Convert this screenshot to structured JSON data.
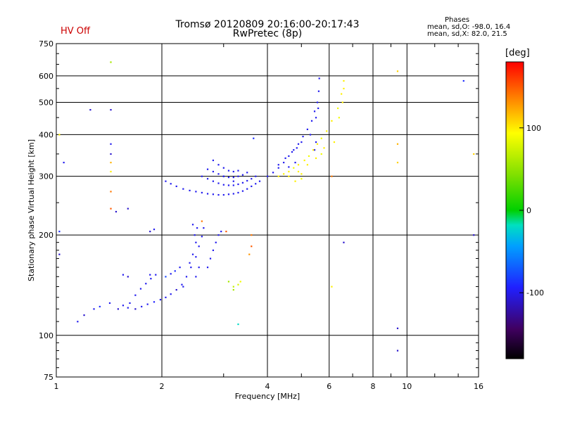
{
  "header": {
    "title_line1": "Tromsø 20120809 20:16:00-20:17:43",
    "title_line2": "RwPretec (8p)",
    "status": "HV Off",
    "stats_title": "Phases",
    "stats_line1": "mean, sd,O: -98.0, 16.4",
    "stats_line2": "mean, sd,X:  82.0, 21.5"
  },
  "colorbar": {
    "label": "[deg]",
    "ticks": [
      "100",
      "0",
      "-100"
    ],
    "tick_values": [
      100,
      0,
      -100
    ],
    "range": [
      -180,
      180
    ]
  },
  "chart_data": {
    "type": "scatter",
    "title": "Tromsø 20120809 20:16:00-20:17:43",
    "subtitle": "RwPretec (8p)",
    "xlabel": "Frequency [MHz]",
    "ylabel": "Stationary phase Virtual Height [km]",
    "xscale": "log",
    "yscale": "log",
    "xlim": [
      1,
      16
    ],
    "ylim": [
      75,
      750
    ],
    "xticks": [
      1,
      2,
      4,
      6,
      8,
      10,
      16
    ],
    "yticks": [
      75,
      100,
      200,
      300,
      400,
      500,
      600,
      750
    ],
    "grid": true,
    "color_by": "phase [deg]",
    "series": [
      {
        "values": [
          [
            1.15,
            110,
            -100
          ],
          [
            1.2,
            115,
            -110
          ],
          [
            1.28,
            120,
            -100
          ],
          [
            1.33,
            122,
            -90
          ],
          [
            1.42,
            125,
            -100
          ],
          [
            1.5,
            120,
            -110
          ],
          [
            1.55,
            123,
            -100
          ],
          [
            1.6,
            121,
            -100
          ],
          [
            1.68,
            120,
            -110
          ],
          [
            1.75,
            122,
            -100
          ],
          [
            1.82,
            124,
            -100
          ],
          [
            1.9,
            126,
            -95
          ],
          [
            1.98,
            128,
            -100
          ],
          [
            2.05,
            130,
            -100
          ],
          [
            2.12,
            133,
            -100
          ],
          [
            2.2,
            137,
            -110
          ],
          [
            2.28,
            142,
            -100
          ],
          [
            2.35,
            150,
            -100
          ],
          [
            2.42,
            160,
            -100
          ],
          [
            2.5,
            172,
            -100
          ],
          [
            2.55,
            185,
            -100
          ],
          [
            2.6,
            198,
            -100
          ],
          [
            2.63,
            210,
            -100
          ],
          [
            1.62,
            125,
            -100
          ],
          [
            1.68,
            132,
            -100
          ],
          [
            1.74,
            138,
            -100
          ],
          [
            1.8,
            143,
            -100
          ],
          [
            1.86,
            148,
            -100
          ],
          [
            1.92,
            152,
            -100
          ],
          [
            1.6,
            150,
            -110
          ],
          [
            1.55,
            152,
            -100
          ],
          [
            1.85,
            152,
            -100
          ],
          [
            2.05,
            150,
            -80
          ],
          [
            2.12,
            153,
            -100
          ],
          [
            2.18,
            156,
            -90
          ],
          [
            2.25,
            160,
            -100
          ],
          [
            2.4,
            165,
            -100
          ],
          [
            2.45,
            175,
            -100
          ],
          [
            2.5,
            190,
            -100
          ],
          [
            2.7,
            160,
            -100
          ],
          [
            2.75,
            170,
            -100
          ],
          [
            2.8,
            180,
            -100
          ],
          [
            2.85,
            190,
            -100
          ],
          [
            2.9,
            200,
            -100
          ],
          [
            2.95,
            205,
            -100
          ],
          [
            2.3,
            140,
            -100
          ],
          [
            2.5,
            150,
            -100
          ],
          [
            2.55,
            160,
            -100
          ],
          [
            2.48,
            200,
            -100
          ],
          [
            2.52,
            210,
            -100
          ],
          [
            2.45,
            215,
            -100
          ],
          [
            1.85,
            205,
            -110
          ],
          [
            1.9,
            208,
            -100
          ],
          [
            2.05,
            290,
            -100
          ],
          [
            2.12,
            285,
            -100
          ],
          [
            2.2,
            280,
            -100
          ],
          [
            2.3,
            275,
            -100
          ],
          [
            2.4,
            272,
            -100
          ],
          [
            2.5,
            270,
            -100
          ],
          [
            2.6,
            268,
            -100
          ],
          [
            2.7,
            266,
            -100
          ],
          [
            2.8,
            265,
            -100
          ],
          [
            2.9,
            264,
            -100
          ],
          [
            3.0,
            264,
            -100
          ],
          [
            3.1,
            265,
            -100
          ],
          [
            3.2,
            266,
            -100
          ],
          [
            3.3,
            268,
            -100
          ],
          [
            3.4,
            271,
            -100
          ],
          [
            3.5,
            275,
            -100
          ],
          [
            3.6,
            280,
            -100
          ],
          [
            3.7,
            285,
            -100
          ],
          [
            3.8,
            290,
            -100
          ],
          [
            2.6,
            300,
            -100
          ],
          [
            2.7,
            295,
            -100
          ],
          [
            2.8,
            290,
            -100
          ],
          [
            2.9,
            286,
            -100
          ],
          [
            3.0,
            283,
            -100
          ],
          [
            3.1,
            282,
            -100
          ],
          [
            3.2,
            282,
            -100
          ],
          [
            3.3,
            284,
            -100
          ],
          [
            3.4,
            287,
            -100
          ],
          [
            3.5,
            291,
            -100
          ],
          [
            3.6,
            295,
            -100
          ],
          [
            3.7,
            300,
            -100
          ],
          [
            2.7,
            315,
            -100
          ],
          [
            2.8,
            310,
            -100
          ],
          [
            2.9,
            305,
            -100
          ],
          [
            3.0,
            300,
            -100
          ],
          [
            3.1,
            298,
            -100
          ],
          [
            3.2,
            298,
            -100
          ],
          [
            3.3,
            300,
            -100
          ],
          [
            3.4,
            303,
            -100
          ],
          [
            3.5,
            308,
            -100
          ],
          [
            2.8,
            335,
            -100
          ],
          [
            2.9,
            325,
            -100
          ],
          [
            3.0,
            318,
            -100
          ],
          [
            3.1,
            312,
            -100
          ],
          [
            3.2,
            310,
            -100
          ],
          [
            3.3,
            312,
            -100
          ],
          [
            3.0,
            300,
            -100
          ],
          [
            3.2,
            290,
            -100
          ],
          [
            4.0,
            300,
            -100
          ],
          [
            4.15,
            308,
            -100
          ],
          [
            4.3,
            318,
            -100
          ],
          [
            4.45,
            330,
            -100
          ],
          [
            4.6,
            345,
            -100
          ],
          [
            4.75,
            360,
            -100
          ],
          [
            4.9,
            375,
            -100
          ],
          [
            5.05,
            395,
            -100
          ],
          [
            5.2,
            415,
            -100
          ],
          [
            5.35,
            440,
            -100
          ],
          [
            5.45,
            470,
            -100
          ],
          [
            5.55,
            500,
            -100
          ],
          [
            5.6,
            540,
            -100
          ],
          [
            5.62,
            590,
            -100
          ],
          [
            4.3,
            325,
            -100
          ],
          [
            4.5,
            340,
            -100
          ],
          [
            4.7,
            355,
            -100
          ],
          [
            4.85,
            365,
            -100
          ],
          [
            5.0,
            380,
            -100
          ],
          [
            5.3,
            400,
            -100
          ],
          [
            5.5,
            450,
            -100
          ],
          [
            5.58,
            480,
            -100
          ],
          [
            5.45,
            360,
            -100
          ],
          [
            5.5,
            380,
            -100
          ],
          [
            4.6,
            320,
            -100
          ],
          [
            4.8,
            330,
            -100
          ],
          [
            4.3,
            300,
            100
          ],
          [
            4.45,
            305,
            100
          ],
          [
            4.6,
            310,
            100
          ],
          [
            4.75,
            318,
            90
          ],
          [
            4.9,
            325,
            100
          ],
          [
            5.0,
            305,
            100
          ],
          [
            5.1,
            335,
            100
          ],
          [
            5.25,
            345,
            90
          ],
          [
            5.4,
            360,
            100
          ],
          [
            5.55,
            375,
            100
          ],
          [
            5.7,
            390,
            90
          ],
          [
            5.9,
            410,
            100
          ],
          [
            6.1,
            440,
            100
          ],
          [
            6.35,
            480,
            90
          ],
          [
            6.5,
            530,
            100
          ],
          [
            6.6,
            580,
            100
          ],
          [
            4.8,
            290,
            100
          ],
          [
            5.0,
            295,
            90
          ],
          [
            4.6,
            300,
            100
          ],
          [
            4.9,
            310,
            100
          ],
          [
            5.2,
            325,
            100
          ],
          [
            5.5,
            340,
            100
          ],
          [
            5.7,
            350,
            90
          ],
          [
            5.8,
            365,
            100
          ],
          [
            6.2,
            380,
            100
          ],
          [
            6.4,
            450,
            90
          ],
          [
            6.55,
            500,
            100
          ],
          [
            6.6,
            550,
            100
          ],
          [
            3.1,
            145,
            60
          ],
          [
            3.2,
            140,
            70
          ],
          [
            3.3,
            142,
            80
          ],
          [
            3.35,
            145,
            90
          ],
          [
            3.2,
            137,
            60
          ],
          [
            1.02,
            400,
            100
          ],
          [
            1.02,
            175,
            -110
          ],
          [
            1.02,
            205,
            -90
          ],
          [
            1.05,
            330,
            -100
          ],
          [
            1.25,
            475,
            -110
          ],
          [
            1.43,
            660,
            60
          ],
          [
            1.43,
            475,
            -110
          ],
          [
            1.43,
            375,
            -100
          ],
          [
            1.43,
            350,
            -110
          ],
          [
            1.43,
            330,
            120
          ],
          [
            1.43,
            310,
            100
          ],
          [
            1.43,
            270,
            140
          ],
          [
            1.43,
            240,
            150
          ],
          [
            1.48,
            235,
            -110
          ],
          [
            1.6,
            240,
            -110
          ],
          [
            3.55,
            175,
            130
          ],
          [
            3.6,
            185,
            150
          ],
          [
            3.6,
            200,
            140
          ],
          [
            3.65,
            390,
            -90
          ],
          [
            3.3,
            108,
            -20
          ],
          [
            6.1,
            140,
            100
          ],
          [
            6.1,
            300,
            140
          ],
          [
            6.6,
            190,
            -110
          ],
          [
            9.4,
            105,
            -110
          ],
          [
            9.4,
            90,
            -110
          ],
          [
            9.4,
            620,
            110
          ],
          [
            9.4,
            375,
            120
          ],
          [
            9.4,
            330,
            110
          ],
          [
            14.5,
            580,
            -90
          ],
          [
            15.5,
            200,
            -110
          ],
          [
            15.5,
            350,
            110
          ],
          [
            2.6,
            220,
            140
          ],
          [
            3.05,
            205,
            150
          ]
        ]
      }
    ]
  }
}
